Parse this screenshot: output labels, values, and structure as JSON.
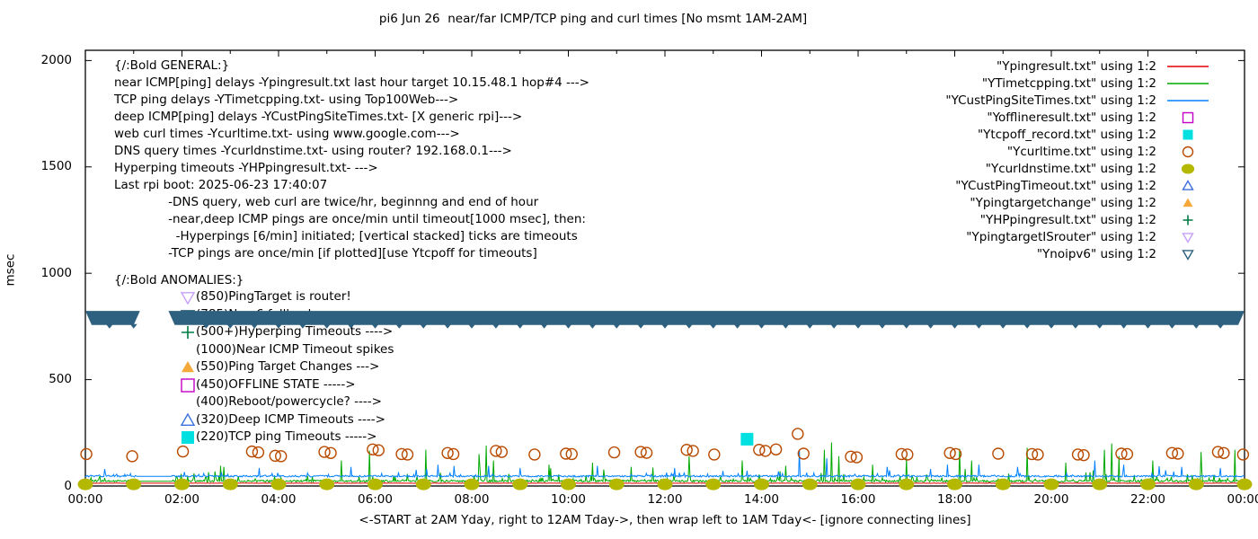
{
  "title": "pi6 Jun 26  near/far ICMP/TCP ping and curl times [No msmt 1AM-2AM]",
  "axes": {
    "ylabel": "msec",
    "xlabel": "<-START at 2AM Yday, right to 12AM Tday->, then wrap left to 1AM Tday<- [ignore connecting lines]",
    "y_ticks": [
      0,
      500,
      1000,
      1500,
      2000
    ],
    "x_ticks": [
      "00:00",
      "02:00",
      "04:00",
      "06:00",
      "08:00",
      "10:00",
      "12:00",
      "14:00",
      "16:00",
      "18:00",
      "20:00",
      "22:00",
      "00:00"
    ],
    "x_tick_hours": [
      0,
      2,
      4,
      6,
      8,
      10,
      12,
      14,
      16,
      18,
      20,
      22,
      24
    ]
  },
  "annotations": {
    "general": {
      "header": "{/:Bold GENERAL:}",
      "lines": [
        "near ICMP[ping] delays -Ypingresult.txt last hour target 10.15.48.1 hop#4 --->",
        "TCP ping delays -YTimetcpping.txt- using Top100Web--->",
        "deep ICMP[ping] delays -YCustPingSiteTimes.txt- [X generic rpi]--->",
        "web curl times -Ycurltime.txt- using www.google.com--->",
        "DNS query times -Ycurldnstime.txt- using router? 192.168.0.1--->",
        "Hyperping timeouts -YHPpingresult.txt- --->",
        "Last rpi boot: 2025-06-23 17:40:07",
        "              -DNS query, web curl are twice/hr, beginnng and end of hour",
        "              -near,deep ICMP pings are once/min until timeout[1000 msec], then:",
        "                -Hyperpings [6/min] initiated; [vertical stacked] ticks are timeouts",
        "              -TCP pings are once/min [if plotted][use Ytcpoff for timeouts]"
      ]
    },
    "anomalies": {
      "header": "{/:Bold ANOMALIES:}",
      "items": [
        {
          "marker": "triangle-down-open",
          "color": "#c6a0f7",
          "text": "(850)PingTarget is router!"
        },
        {
          "marker": "triangle-down-open",
          "color": "#2e607f",
          "text": "(785)No v6 fallback"
        },
        {
          "marker": "plus",
          "color": "#007b43",
          "text": "(500+)Hyperping Timeouts ---->"
        },
        {
          "marker": null,
          "color": null,
          "text": "(1000)Near ICMP Timeout spikes"
        },
        {
          "marker": "triangle-up-filled",
          "color": "#f5a93b",
          "text": "(550)Ping Target Changes --->"
        },
        {
          "marker": "square-open",
          "color": "#c400c4",
          "text": "(450)OFFLINE STATE ----->"
        },
        {
          "marker": null,
          "color": null,
          "text": "(400)Reboot/powercycle? ---->"
        },
        {
          "marker": "triangle-up-open",
          "color": "#3c6fde",
          "text": "(320)Deep ICMP Timeouts ---->"
        },
        {
          "marker": "square-filled",
          "color": "#00e0e0",
          "text": "(220)TCP ping Timeouts ----->"
        }
      ]
    }
  },
  "legend": {
    "entries": [
      {
        "label": "\"Ypingresult.txt\" using 1:2",
        "symbol": "line",
        "color": "#e60000"
      },
      {
        "label": "\"YTimetcpping.txt\" using 1:2",
        "symbol": "line",
        "color": "#00a800"
      },
      {
        "label": "\"YCustPingSiteTimes.txt\" using 1:2",
        "symbol": "line",
        "color": "#0080ff"
      },
      {
        "label": "\"Yofflineresult.txt\" using 1:2",
        "symbol": "square-open",
        "color": "#c400c4"
      },
      {
        "label": "\"Ytcpoff_record.txt\" using 1:2",
        "symbol": "square-filled",
        "color": "#00e0e0"
      },
      {
        "label": "\"Ycurltime.txt\" using 1:2",
        "symbol": "circle-open",
        "color": "#b84a00"
      },
      {
        "label": "\"Ycurldnstime.txt\" using 1:2",
        "symbol": "circle-filled",
        "color": "#b5b800"
      },
      {
        "label": "\"YCustPingTimeout.txt\" using 1:2",
        "symbol": "triangle-up-open",
        "color": "#3c6fde"
      },
      {
        "label": "\"Ypingtargetchange\" using 1:2",
        "symbol": "triangle-up-filled",
        "color": "#f5a93b"
      },
      {
        "label": "\"YHPpingresult.txt\" using 1:2",
        "symbol": "plus",
        "color": "#007b43"
      },
      {
        "label": "\"YpingtargetISrouter\" using 1:2",
        "symbol": "triangle-down-open",
        "color": "#c6a0f7"
      },
      {
        "label": "\"Ynoipv6\" using 1:2",
        "symbol": "triangle-down-open",
        "color": "#2e607f"
      }
    ]
  },
  "chart_data": {
    "type": "line",
    "title": "pi6 Jun 26  near/far ICMP/TCP ping and curl times [No msmt 1AM-2AM]",
    "xlabel": "<-START at 2AM Yday, right to 12AM Tday->, then wrap left to 1AM Tday<- [ignore connecting lines]",
    "ylabel": "msec",
    "xlim_hours": [
      0,
      24
    ],
    "ylim": [
      0,
      2048
    ],
    "grid": false,
    "legend_position": "top-right",
    "measurement_gap_hours": {
      "start": 1.05,
      "end": 1.8
    },
    "series": [
      {
        "name": "Ypingresult.txt",
        "render": "line",
        "color": "#e60000",
        "base": 13,
        "noise": 1.5,
        "spike_prob": 0.02,
        "spike_scale": 2,
        "spike_cap": 5,
        "min": 10,
        "spikes": []
      },
      {
        "name": "YTimetcpping.txt",
        "render": "line",
        "color": "#00a800",
        "base": 22,
        "noise": 9,
        "spike_prob": 0.15,
        "spike_scale": 14,
        "spike_cap": 70,
        "min": 12,
        "spikes": [
          [
            2.8,
            95
          ],
          [
            5.3,
            120
          ],
          [
            5.88,
            166
          ],
          [
            7.05,
            170
          ],
          [
            8.15,
            150
          ],
          [
            8.3,
            190
          ],
          [
            8.45,
            120
          ],
          [
            9.6,
            100
          ],
          [
            10.5,
            110
          ],
          [
            11.3,
            90
          ],
          [
            12.5,
            140
          ],
          [
            13.6,
            120
          ],
          [
            14.5,
            95
          ],
          [
            15.3,
            170
          ],
          [
            15.45,
            205
          ],
          [
            15.6,
            140
          ],
          [
            16.3,
            100
          ],
          [
            17.0,
            130
          ],
          [
            18.1,
            175
          ],
          [
            18.35,
            120
          ],
          [
            19.5,
            180
          ],
          [
            20.3,
            110
          ],
          [
            21.1,
            170
          ],
          [
            21.25,
            200
          ],
          [
            21.4,
            140
          ],
          [
            22.1,
            120
          ],
          [
            23.1,
            160
          ],
          [
            23.8,
            170
          ]
        ]
      },
      {
        "name": "YCustPingSiteTimes.txt",
        "render": "line",
        "color": "#0080ff",
        "base": 45,
        "noise": 8,
        "spike_prob": 0.08,
        "spike_scale": 12,
        "spike_cap": 60,
        "min": 30,
        "spikes": [
          [
            0.4,
            80
          ],
          [
            3.6,
            85
          ],
          [
            5.5,
            90
          ],
          [
            7.3,
            100
          ],
          [
            9.0,
            85
          ],
          [
            10.6,
            95
          ],
          [
            12.2,
            85
          ],
          [
            14.78,
            170
          ],
          [
            15.35,
            130
          ],
          [
            16.6,
            90
          ],
          [
            18.5,
            100
          ],
          [
            19.3,
            90
          ],
          [
            20.9,
            120
          ],
          [
            21.5,
            100
          ],
          [
            22.7,
            90
          ],
          [
            23.5,
            85
          ]
        ]
      },
      {
        "name": "Yofflineresult.txt",
        "render": "points",
        "marker": "square-open",
        "color": "#c400c4",
        "size": 6,
        "points": []
      },
      {
        "name": "Ytcpoff_record.txt",
        "render": "points",
        "marker": "square-filled",
        "color": "#00e0e0",
        "size": 7,
        "points": [
          [
            13.7,
            220
          ]
        ]
      },
      {
        "name": "Ycurltime.txt",
        "render": "points",
        "marker": "circle-open",
        "color": "#b84a00",
        "size": 6,
        "points": [
          [
            0.02,
            150
          ],
          [
            0.97,
            140
          ],
          [
            2.02,
            162
          ],
          [
            3.45,
            162
          ],
          [
            3.58,
            158
          ],
          [
            3.93,
            142
          ],
          [
            4.05,
            140
          ],
          [
            4.95,
            160
          ],
          [
            5.08,
            155
          ],
          [
            5.95,
            172
          ],
          [
            6.07,
            168
          ],
          [
            6.55,
            150
          ],
          [
            6.67,
            148
          ],
          [
            7.5,
            155
          ],
          [
            7.62,
            150
          ],
          [
            8.5,
            165
          ],
          [
            8.62,
            160
          ],
          [
            9.3,
            148
          ],
          [
            9.95,
            152
          ],
          [
            10.07,
            150
          ],
          [
            10.95,
            158
          ],
          [
            11.5,
            160
          ],
          [
            11.62,
            156
          ],
          [
            12.45,
            170
          ],
          [
            12.58,
            165
          ],
          [
            13.02,
            148
          ],
          [
            13.95,
            170
          ],
          [
            14.08,
            165
          ],
          [
            14.3,
            172
          ],
          [
            14.75,
            245
          ],
          [
            14.87,
            152
          ],
          [
            15.85,
            138
          ],
          [
            15.97,
            135
          ],
          [
            16.9,
            150
          ],
          [
            17.02,
            148
          ],
          [
            17.9,
            155
          ],
          [
            18.02,
            150
          ],
          [
            18.9,
            152
          ],
          [
            19.6,
            150
          ],
          [
            19.72,
            148
          ],
          [
            20.55,
            148
          ],
          [
            20.67,
            145
          ],
          [
            21.45,
            152
          ],
          [
            21.57,
            150
          ],
          [
            22.5,
            155
          ],
          [
            22.62,
            152
          ],
          [
            23.45,
            160
          ],
          [
            23.57,
            155
          ],
          [
            23.97,
            148
          ]
        ]
      },
      {
        "name": "Ycurldnstime.txt",
        "render": "points",
        "marker": "circle-filled",
        "color": "#b5b800",
        "size": 6.5,
        "points": [
          [
            0,
            8
          ],
          [
            1,
            8
          ],
          [
            2,
            8
          ],
          [
            3,
            8
          ],
          [
            4,
            8
          ],
          [
            5,
            8
          ],
          [
            6,
            8
          ],
          [
            7,
            8
          ],
          [
            8,
            8
          ],
          [
            9,
            8
          ],
          [
            10,
            8
          ],
          [
            11,
            8
          ],
          [
            12,
            8
          ],
          [
            13,
            8
          ],
          [
            14,
            8
          ],
          [
            15,
            8
          ],
          [
            16,
            8
          ],
          [
            17,
            8
          ],
          [
            18,
            8
          ],
          [
            19,
            8
          ],
          [
            20,
            8
          ],
          [
            21,
            8
          ],
          [
            22,
            8
          ],
          [
            23,
            8
          ],
          [
            24,
            8
          ]
        ]
      },
      {
        "name": "YCustPingTimeout.txt",
        "render": "points",
        "marker": "triangle-up-open",
        "color": "#3c6fde",
        "size": 7,
        "points": []
      },
      {
        "name": "Ypingtargetchange",
        "render": "points",
        "marker": "triangle-up-filled",
        "color": "#f5a93b",
        "size": 7,
        "points": []
      },
      {
        "name": "YHPpingresult.txt",
        "render": "points",
        "marker": "plus",
        "color": "#007b43",
        "size": 7,
        "points": []
      },
      {
        "name": "YpingtargetISrouter",
        "render": "points",
        "marker": "triangle-down-open",
        "color": "#c6a0f7",
        "size": 7,
        "points": []
      },
      {
        "name": "Ynoipv6",
        "render": "band",
        "color": "#2e607f",
        "value": 790,
        "half_height": 33,
        "segments_hours": [
          [
            0,
            1.13
          ],
          [
            1.72,
            24
          ]
        ],
        "tick_step_hours": 0.5
      }
    ]
  }
}
